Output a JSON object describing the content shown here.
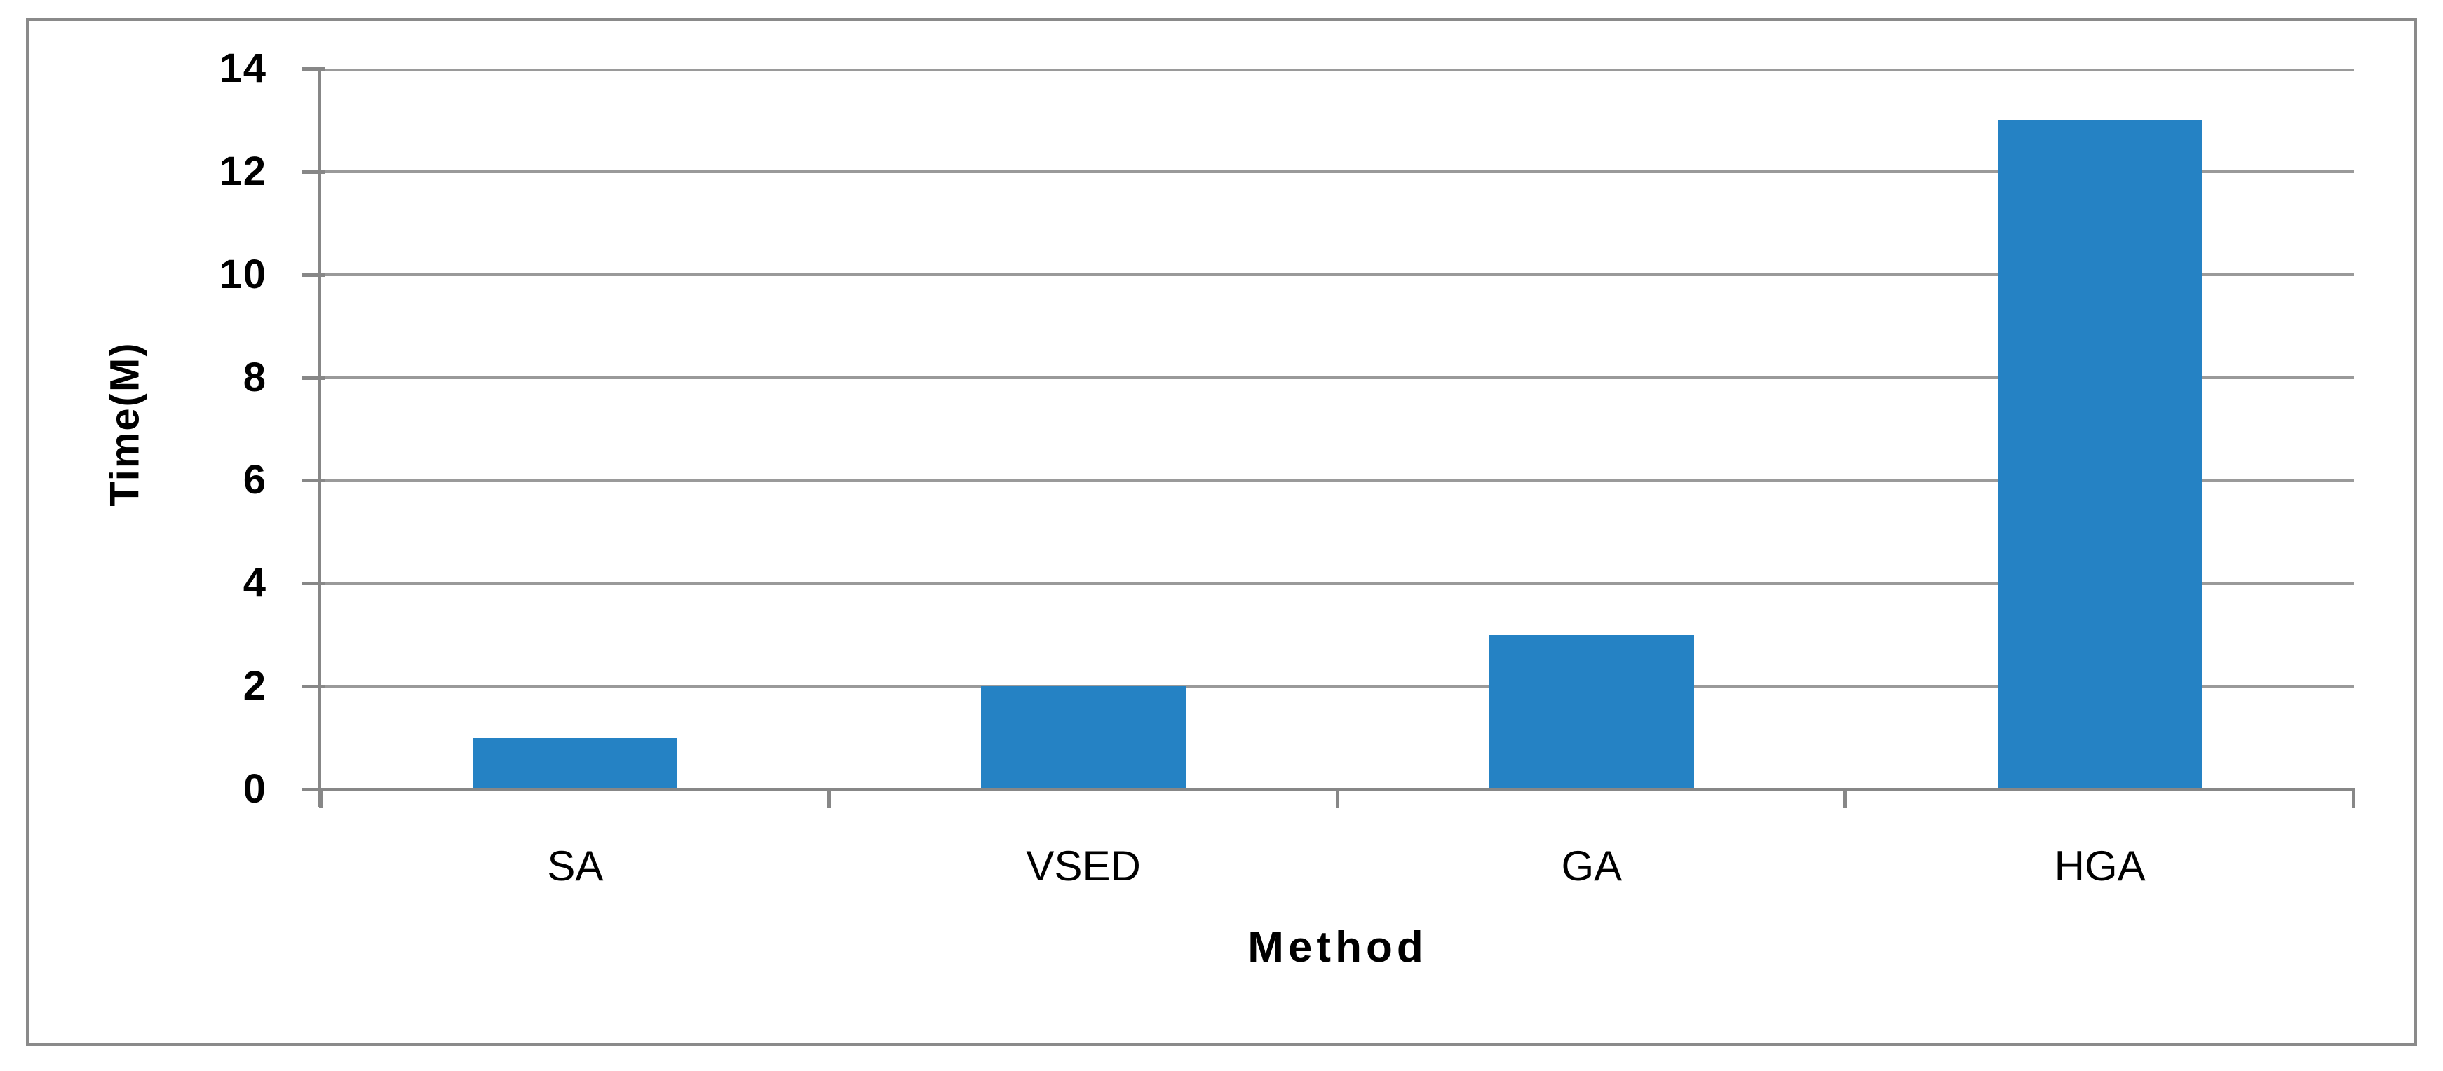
{
  "figure": {
    "background": "#FFFFFF",
    "frame_color": "#8A8A8A"
  },
  "chart_data": {
    "type": "bar",
    "title": "",
    "categories": [
      "SA",
      "VSED",
      "GA",
      "HGA"
    ],
    "values": [
      1,
      2,
      3,
      13
    ],
    "xlabel": "Method",
    "ylabel": "Time(M)",
    "yticks": [
      0,
      2,
      4,
      6,
      8,
      10,
      12,
      14
    ],
    "ylim": [
      0,
      14
    ],
    "grid": "horizontal major gridlines",
    "legend": "none",
    "bar_color": "#2582C4",
    "gridline_color": "#9A9A9A",
    "axis_color": "#878787",
    "text_color": "#000000"
  }
}
